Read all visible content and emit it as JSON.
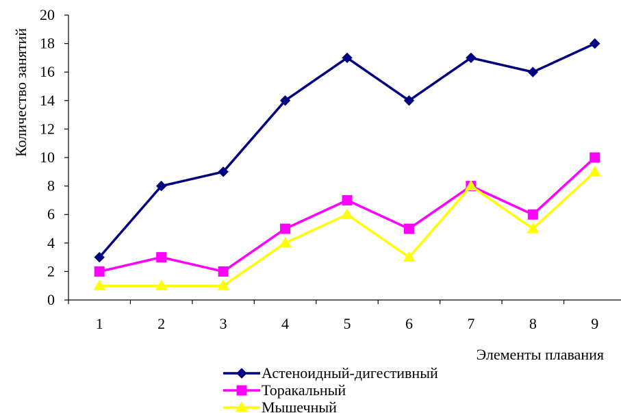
{
  "chart_data": {
    "type": "line",
    "title": "",
    "xlabel": "Элементы плавания",
    "ylabel": "Количество занятий",
    "categories": [
      "1",
      "2",
      "3",
      "4",
      "5",
      "6",
      "7",
      "8",
      "9"
    ],
    "ylim": [
      0,
      20
    ],
    "yticks": [
      "0",
      "2",
      "4",
      "6",
      "8",
      "10",
      "12",
      "14",
      "16",
      "18",
      "20"
    ],
    "grid": false,
    "legend_position": "bottom",
    "series": [
      {
        "name": "Астеноидный-дигестивный",
        "color": "#000080",
        "marker": "diamond",
        "values": [
          3,
          8,
          9,
          14,
          17,
          14,
          17,
          16,
          18
        ]
      },
      {
        "name": "Торакальный",
        "color": "#FF00FF",
        "marker": "square",
        "values": [
          2,
          3,
          2,
          5,
          7,
          5,
          8,
          6,
          10
        ]
      },
      {
        "name": "Мышечный",
        "color": "#FFFF00",
        "marker": "triangle",
        "values": [
          1,
          1,
          1,
          4,
          6,
          3,
          8,
          5,
          9
        ]
      }
    ]
  }
}
